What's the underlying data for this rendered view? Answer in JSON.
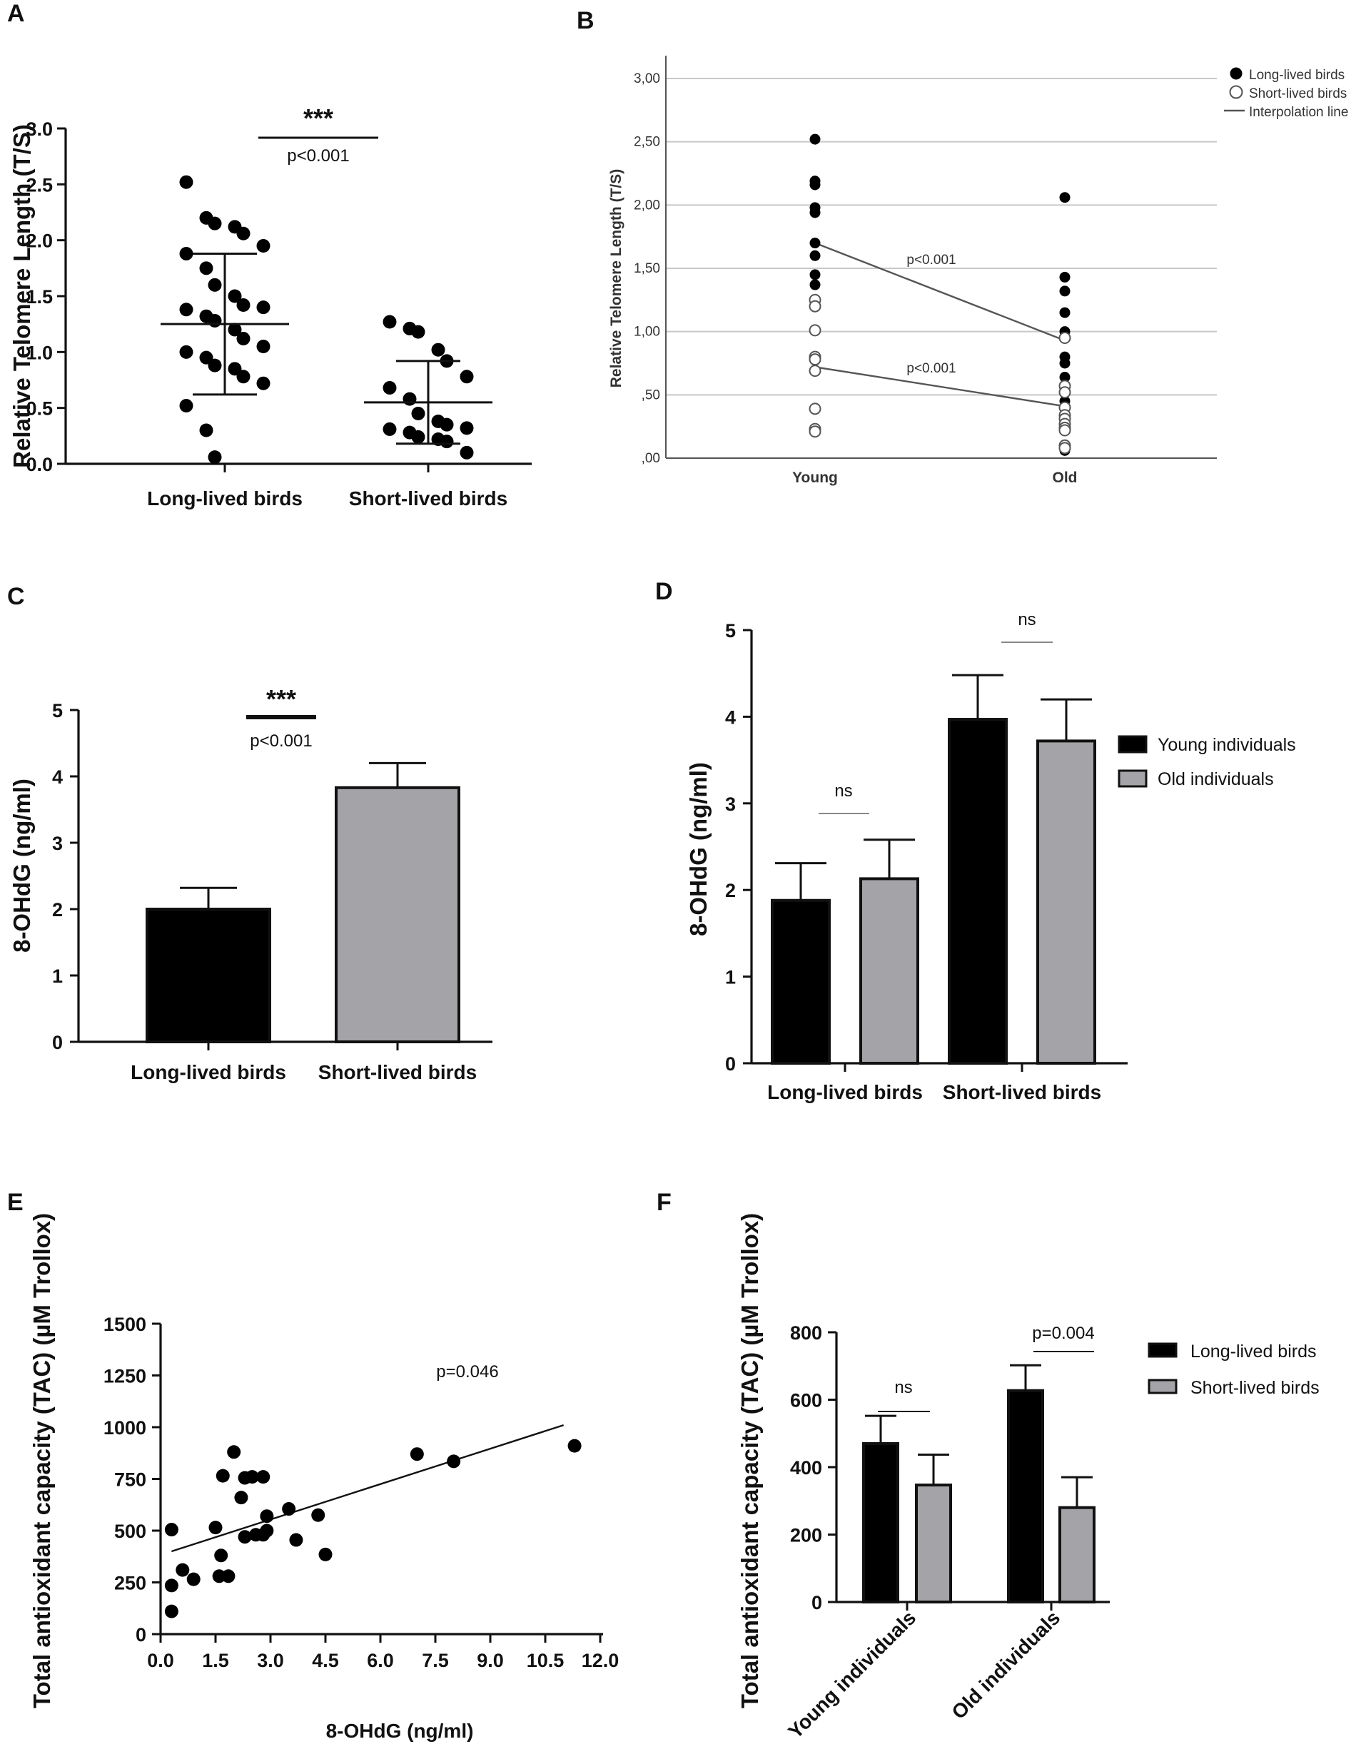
{
  "panels": {
    "a": "A",
    "b": "B",
    "c": "C",
    "d": "D",
    "e": "E",
    "f": "F"
  },
  "chart_data": [
    {
      "id": "A",
      "type": "scatter",
      "ylabel": "Relative Telomere Length (T/S)",
      "categories": [
        "Long-lived birds",
        "Short-lived birds"
      ],
      "yticks": [
        "0.0",
        "0.5",
        "1.0",
        "1.5",
        "2.0",
        "2.5",
        "3.0"
      ],
      "ylim": [
        0,
        3.0
      ],
      "series": [
        {
          "name": "Long-lived birds",
          "values": [
            2.52,
            2.2,
            2.15,
            2.12,
            2.06,
            1.95,
            1.88,
            1.75,
            1.6,
            1.5,
            1.42,
            1.4,
            1.38,
            1.32,
            1.28,
            1.2,
            1.12,
            1.05,
            1.0,
            0.95,
            0.88,
            0.85,
            0.78,
            0.72,
            0.52,
            0.3,
            0.06
          ],
          "mean": 1.25,
          "sd_low": 0.62,
          "sd_high": 1.88
        },
        {
          "name": "Short-lived birds",
          "values": [
            1.27,
            1.21,
            1.18,
            1.02,
            0.92,
            0.78,
            0.68,
            0.58,
            0.45,
            0.38,
            0.35,
            0.32,
            0.31,
            0.28,
            0.24,
            0.22,
            0.2,
            0.1
          ],
          "mean": 0.55,
          "sd_low": 0.18,
          "sd_high": 0.92
        }
      ],
      "significance": "***",
      "pvalue": "p<0.001"
    },
    {
      "id": "B",
      "type": "scatter",
      "ylabel": "Relative Telomere Length (T/S)",
      "categories": [
        "Young",
        "Old"
      ],
      "yticks": [
        ",00",
        ",50",
        "1,00",
        "1,50",
        "2,00",
        "2,50",
        "3,00"
      ],
      "ylim": [
        0,
        3.0
      ],
      "series": [
        {
          "name": "Long-lived birds",
          "young": [
            2.52,
            2.19,
            2.16,
            1.98,
            1.94,
            1.7,
            1.6,
            1.45,
            1.37
          ],
          "old": [
            2.06,
            1.43,
            1.32,
            1.15,
            1.0,
            0.8,
            0.75,
            0.64,
            0.55,
            0.45,
            0.4,
            0.06
          ],
          "line": [
            1.7,
            0.93
          ]
        },
        {
          "name": "Short-lived birds",
          "young": [
            1.25,
            1.2,
            1.01,
            0.8,
            0.78,
            0.69,
            0.39,
            0.23,
            0.21
          ],
          "old": [
            0.95,
            0.57,
            0.52,
            0.4,
            0.34,
            0.31,
            0.27,
            0.24,
            0.22,
            0.1,
            0.08
          ],
          "line": [
            0.72,
            0.41
          ]
        }
      ],
      "legend": [
        "Long-lived birds",
        "Short-lived birds",
        "Interpolation line"
      ],
      "pvalues": [
        "p<0.001",
        "p<0.001"
      ]
    },
    {
      "id": "C",
      "type": "bar",
      "ylabel": "8-OHdG (ng/ml)",
      "categories": [
        "Long-lived birds",
        "Short-lived birds"
      ],
      "values": [
        2.0,
        3.83
      ],
      "errors": [
        0.32,
        0.37
      ],
      "colors": [
        "#000000",
        "#a4a4a8"
      ],
      "yticks": [
        "0",
        "1",
        "2",
        "3",
        "4",
        "5"
      ],
      "ylim": [
        0,
        5
      ],
      "significance": "***",
      "pvalue": "p<0.001"
    },
    {
      "id": "D",
      "type": "bar",
      "ylabel": "8-OHdG (ng/ml)",
      "categories": [
        "Long-lived birds",
        "Short-lived birds"
      ],
      "series": [
        {
          "name": "Young individuals",
          "values": [
            1.88,
            3.97
          ],
          "errors": [
            0.43,
            0.51
          ],
          "color": "#000000"
        },
        {
          "name": "Old individuals",
          "values": [
            2.13,
            3.72
          ],
          "errors": [
            0.45,
            0.48
          ],
          "color": "#a4a4a8"
        }
      ],
      "yticks": [
        "0",
        "1",
        "2",
        "3",
        "4",
        "5"
      ],
      "ylim": [
        0,
        5
      ],
      "annotations": [
        "ns",
        "ns"
      ]
    },
    {
      "id": "E",
      "type": "scatter",
      "xlabel": "8-OHdG (ng/ml)",
      "ylabel": "Total antioxidant capacity (TAC) (µM Trollox)",
      "xticks": [
        "0.0",
        "1.5",
        "3.0",
        "4.5",
        "6.0",
        "7.5",
        "9.0",
        "10.5",
        "12.0"
      ],
      "yticks": [
        "0",
        "250",
        "500",
        "750",
        "1000",
        "1250",
        "1500"
      ],
      "xlim": [
        0,
        12.0
      ],
      "ylim": [
        0,
        1500
      ],
      "points": [
        [
          0.3,
          110
        ],
        [
          0.3,
          235
        ],
        [
          0.3,
          505
        ],
        [
          0.6,
          310
        ],
        [
          0.9,
          265
        ],
        [
          1.5,
          515
        ],
        [
          1.6,
          280
        ],
        [
          1.65,
          380
        ],
        [
          1.7,
          765
        ],
        [
          1.85,
          280
        ],
        [
          2.0,
          880
        ],
        [
          2.2,
          660
        ],
        [
          2.3,
          470
        ],
        [
          2.3,
          755
        ],
        [
          2.5,
          760
        ],
        [
          2.6,
          480
        ],
        [
          2.8,
          760
        ],
        [
          2.8,
          480
        ],
        [
          2.9,
          570
        ],
        [
          2.9,
          500
        ],
        [
          3.5,
          605
        ],
        [
          3.7,
          455
        ],
        [
          4.3,
          575
        ],
        [
          4.5,
          385
        ],
        [
          7.0,
          870
        ],
        [
          8.0,
          835
        ],
        [
          11.3,
          910
        ]
      ],
      "fit": [
        [
          0.3,
          400
        ],
        [
          11.0,
          1010
        ]
      ],
      "pvalue": "p=0.046"
    },
    {
      "id": "F",
      "type": "bar",
      "ylabel": "Total antioxidant capacity (TAC) (µM Trollox)",
      "categories": [
        "Young individuals",
        "Old individuals"
      ],
      "series": [
        {
          "name": "Long-lived birds",
          "values": [
            470,
            627
          ],
          "errors": [
            82,
            75
          ],
          "color": "#000000"
        },
        {
          "name": "Short-lived birds",
          "values": [
            347,
            280
          ],
          "errors": [
            90,
            90
          ],
          "color": "#a4a4a8"
        }
      ],
      "yticks": [
        "0",
        "200",
        "400",
        "600",
        "800"
      ],
      "ylim": [
        0,
        800
      ],
      "annotations": [
        "ns",
        "p=0.004"
      ]
    }
  ]
}
